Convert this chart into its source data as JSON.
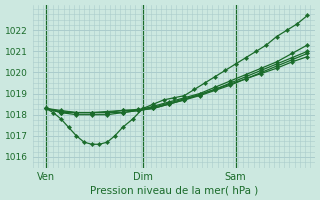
{
  "background_color": "#cce8e0",
  "grid_color": "#aacccc",
  "line_color": "#1a6b2a",
  "xlabel": "Pression niveau de la mer( hPa )",
  "ylim": [
    1015.5,
    1023.2
  ],
  "yticks": [
    1016,
    1017,
    1018,
    1019,
    1020,
    1021,
    1022
  ],
  "xtick_labels": [
    "Ven",
    "Dim",
    "Sam"
  ],
  "xtick_positions": [
    0.0,
    0.38,
    0.74
  ],
  "xvlines": [
    0.0,
    0.38,
    0.74
  ],
  "xlim": [
    -0.05,
    1.05
  ],
  "series": [
    {
      "x": [
        0.0,
        0.03,
        0.06,
        0.09,
        0.12,
        0.15,
        0.18,
        0.21,
        0.24,
        0.27,
        0.3,
        0.34,
        0.38,
        0.42,
        0.46,
        0.5,
        0.54,
        0.58,
        0.62,
        0.66,
        0.7,
        0.74,
        0.78,
        0.82,
        0.86,
        0.9,
        0.94,
        0.98,
        1.02
      ],
      "y": [
        1018.3,
        1018.1,
        1017.8,
        1017.4,
        1017.0,
        1016.7,
        1016.6,
        1016.6,
        1016.7,
        1017.0,
        1017.4,
        1017.8,
        1018.3,
        1018.5,
        1018.7,
        1018.8,
        1018.9,
        1019.2,
        1019.5,
        1019.8,
        1020.1,
        1020.4,
        1020.7,
        1021.0,
        1021.3,
        1021.7,
        1022.0,
        1022.3,
        1022.7
      ]
    },
    {
      "x": [
        0.0,
        0.06,
        0.12,
        0.18,
        0.24,
        0.3,
        0.36,
        0.42,
        0.48,
        0.54,
        0.6,
        0.66,
        0.72,
        0.78,
        0.84,
        0.9,
        0.96,
        1.02
      ],
      "y": [
        1018.3,
        1018.1,
        1018.0,
        1018.0,
        1018.0,
        1018.1,
        1018.2,
        1018.4,
        1018.6,
        1018.8,
        1019.0,
        1019.3,
        1019.6,
        1019.9,
        1020.2,
        1020.5,
        1020.9,
        1021.3
      ]
    },
    {
      "x": [
        0.0,
        0.06,
        0.12,
        0.18,
        0.24,
        0.3,
        0.36,
        0.42,
        0.48,
        0.54,
        0.6,
        0.66,
        0.72,
        0.78,
        0.84,
        0.9,
        0.96,
        1.02
      ],
      "y": [
        1018.3,
        1018.1,
        1018.1,
        1018.1,
        1018.1,
        1018.1,
        1018.2,
        1018.3,
        1018.5,
        1018.7,
        1018.95,
        1019.2,
        1019.5,
        1019.8,
        1020.1,
        1020.4,
        1020.7,
        1021.0
      ]
    },
    {
      "x": [
        0.0,
        0.06,
        0.12,
        0.18,
        0.24,
        0.3,
        0.36,
        0.42,
        0.48,
        0.54,
        0.6,
        0.66,
        0.72,
        0.78,
        0.84,
        0.9,
        0.96,
        1.02
      ],
      "y": [
        1018.3,
        1018.15,
        1018.1,
        1018.1,
        1018.1,
        1018.2,
        1018.2,
        1018.3,
        1018.5,
        1018.7,
        1018.9,
        1019.15,
        1019.4,
        1019.7,
        1020.0,
        1020.3,
        1020.6,
        1020.9
      ]
    },
    {
      "x": [
        0.0,
        0.06,
        0.12,
        0.18,
        0.24,
        0.3,
        0.36,
        0.42,
        0.48,
        0.54,
        0.6,
        0.66,
        0.72,
        0.78,
        0.84,
        0.9,
        0.96,
        1.02
      ],
      "y": [
        1018.3,
        1018.2,
        1018.1,
        1018.1,
        1018.15,
        1018.2,
        1018.25,
        1018.35,
        1018.55,
        1018.75,
        1018.95,
        1019.2,
        1019.45,
        1019.7,
        1019.95,
        1020.2,
        1020.5,
        1020.75
      ]
    }
  ],
  "marker": "D",
  "markersize": 2.2,
  "linewidth": 0.9
}
